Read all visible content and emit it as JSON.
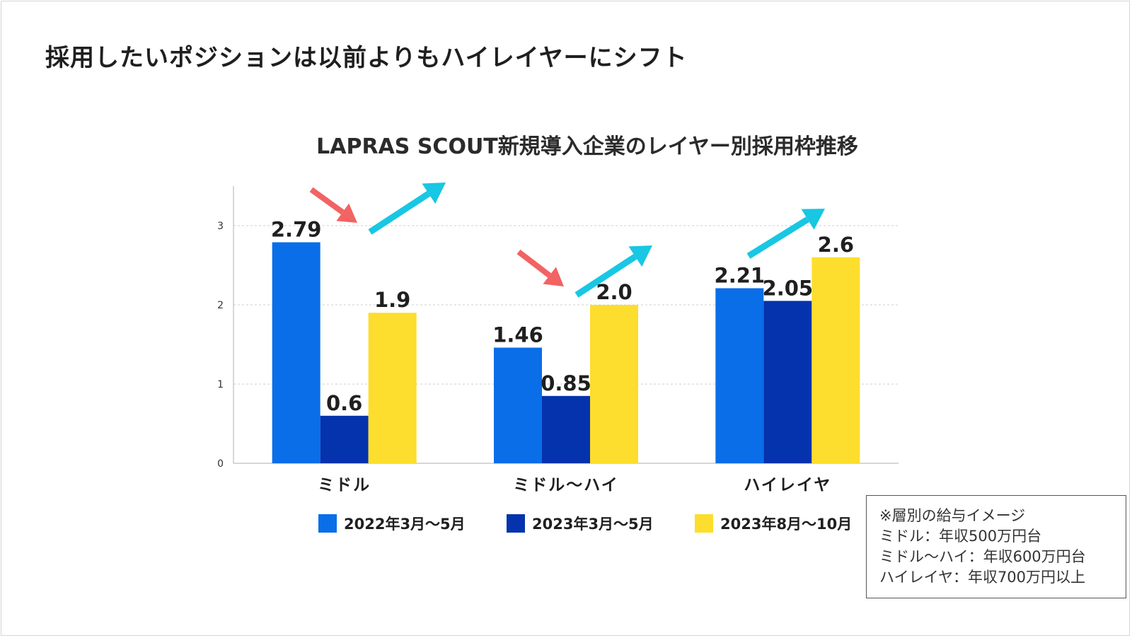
{
  "slide": {
    "title": "採用したいポジションは以前よりもハイレイヤーにシフト"
  },
  "chart_data": {
    "type": "bar",
    "title": "LAPRAS SCOUT新規導入企業のレイヤー別採用枠推移",
    "categories": [
      "ミドル",
      "ミドル〜ハイ",
      "ハイレイヤ"
    ],
    "series": [
      {
        "name": "2022年3月〜5月",
        "values": [
          2.79,
          1.46,
          2.21
        ],
        "labels": [
          "2.79",
          "1.46",
          "2.21"
        ],
        "color": "#0a6ee8"
      },
      {
        "name": "2023年3月〜5月",
        "values": [
          0.6,
          0.85,
          2.05
        ],
        "labels": [
          "0.6",
          "0.85",
          "2.05"
        ],
        "color": "#0433ad"
      },
      {
        "name": "2023年8月〜10月",
        "values": [
          1.9,
          2.0,
          2.6
        ],
        "labels": [
          "1.9",
          "2.0",
          "2.6"
        ],
        "color": "#fddd2d"
      }
    ],
    "ylim": [
      0,
      3.5
    ],
    "yticks": [
      0,
      1,
      2,
      3
    ],
    "ytick_labels": [
      "0",
      "1",
      "2",
      "3"
    ],
    "grid": true,
    "legend": "bottom",
    "annotations": {
      "down_arrows_color": "#f26363",
      "up_arrows_color": "#18c7e3"
    }
  },
  "note": {
    "lines": [
      "※層別の給与イメージ",
      "ミドル：年収500万円台",
      "ミドル〜ハイ：年収600万円台",
      "ハイレイヤ：年収700万円以上"
    ]
  }
}
